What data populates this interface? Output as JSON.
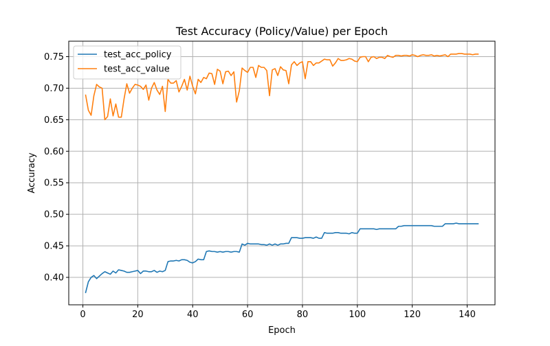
{
  "chart_data": {
    "type": "line",
    "title": "Test Accuracy (Policy/Value) per Epoch",
    "xlabel": "Epoch",
    "ylabel": "Accuracy",
    "xlim": [
      -5.15,
      150.15
    ],
    "ylim": [
      0.3565,
      0.7745
    ],
    "xticks": [
      0,
      20,
      40,
      60,
      80,
      100,
      120,
      140
    ],
    "yticks": [
      0.4,
      0.45,
      0.5,
      0.55,
      0.6,
      0.65,
      0.7,
      0.75
    ],
    "xtick_labels": [
      "0",
      "20",
      "40",
      "60",
      "80",
      "100",
      "120",
      "140"
    ],
    "ytick_labels": [
      "0.40",
      "0.45",
      "0.50",
      "0.55",
      "0.60",
      "0.65",
      "0.70",
      "0.75"
    ],
    "grid": true,
    "legend_position": "upper-left",
    "colors": {
      "test_acc_policy": "#1f77b4",
      "test_acc_value": "#ff7f0e",
      "grid": "#b0b0b0"
    },
    "series": [
      {
        "name": "test_acc_policy",
        "color": "#1f77b4",
        "x": [
          1,
          2,
          3,
          4,
          5,
          6,
          7,
          8,
          9,
          10,
          11,
          12,
          13,
          14,
          15,
          16,
          17,
          18,
          19,
          20,
          21,
          22,
          23,
          24,
          25,
          26,
          27,
          28,
          29,
          30,
          31,
          32,
          33,
          34,
          35,
          36,
          37,
          38,
          39,
          40,
          41,
          42,
          43,
          44,
          45,
          46,
          47,
          48,
          49,
          50,
          51,
          52,
          53,
          54,
          55,
          56,
          57,
          58,
          59,
          60,
          61,
          62,
          63,
          64,
          65,
          66,
          67,
          68,
          69,
          70,
          71,
          72,
          73,
          74,
          75,
          76,
          77,
          78,
          79,
          80,
          81,
          82,
          83,
          84,
          85,
          86,
          87,
          88,
          89,
          90,
          91,
          92,
          93,
          94,
          95,
          96,
          97,
          98,
          99,
          100,
          101,
          102,
          103,
          104,
          105,
          106,
          107,
          108,
          109,
          110,
          111,
          112,
          113,
          114,
          115,
          116,
          117,
          118,
          119,
          120,
          121,
          122,
          123,
          124,
          125,
          126,
          127,
          128,
          129,
          130,
          131,
          132,
          133,
          134,
          135,
          136,
          137,
          138,
          139,
          140,
          141,
          142,
          143,
          144
        ],
        "values": [
          0.376,
          0.393,
          0.4,
          0.403,
          0.398,
          0.402,
          0.406,
          0.409,
          0.407,
          0.405,
          0.41,
          0.407,
          0.412,
          0.411,
          0.41,
          0.408,
          0.408,
          0.409,
          0.41,
          0.411,
          0.406,
          0.41,
          0.41,
          0.409,
          0.409,
          0.411,
          0.408,
          0.41,
          0.409,
          0.411,
          0.425,
          0.426,
          0.426,
          0.427,
          0.426,
          0.428,
          0.428,
          0.427,
          0.424,
          0.423,
          0.425,
          0.429,
          0.428,
          0.428,
          0.441,
          0.442,
          0.441,
          0.441,
          0.44,
          0.441,
          0.44,
          0.441,
          0.441,
          0.44,
          0.441,
          0.441,
          0.44,
          0.453,
          0.451,
          0.454,
          0.453,
          0.453,
          0.453,
          0.453,
          0.452,
          0.452,
          0.451,
          0.453,
          0.451,
          0.453,
          0.451,
          0.453,
          0.453,
          0.454,
          0.454,
          0.463,
          0.463,
          0.463,
          0.462,
          0.462,
          0.463,
          0.463,
          0.463,
          0.462,
          0.464,
          0.462,
          0.462,
          0.471,
          0.47,
          0.47,
          0.47,
          0.471,
          0.471,
          0.47,
          0.47,
          0.47,
          0.469,
          0.471,
          0.47,
          0.47,
          0.477,
          0.477,
          0.477,
          0.477,
          0.477,
          0.477,
          0.476,
          0.477,
          0.477,
          0.477,
          0.477,
          0.477,
          0.477,
          0.477,
          0.481,
          0.481,
          0.482,
          0.482,
          0.482,
          0.482,
          0.482,
          0.482,
          0.482,
          0.482,
          0.482,
          0.482,
          0.482,
          0.481,
          0.481,
          0.481,
          0.481,
          0.485,
          0.485,
          0.485,
          0.485,
          0.486,
          0.485,
          0.485,
          0.485,
          0.485,
          0.485,
          0.485,
          0.485,
          0.485
        ]
      },
      {
        "name": "test_acc_value",
        "color": "#ff7f0e",
        "x": [
          1,
          2,
          3,
          4,
          5,
          6,
          7,
          8,
          9,
          10,
          11,
          12,
          13,
          14,
          15,
          16,
          17,
          18,
          19,
          20,
          21,
          22,
          23,
          24,
          25,
          26,
          27,
          28,
          29,
          30,
          31,
          32,
          33,
          34,
          35,
          36,
          37,
          38,
          39,
          40,
          41,
          42,
          43,
          44,
          45,
          46,
          47,
          48,
          49,
          50,
          51,
          52,
          53,
          54,
          55,
          56,
          57,
          58,
          59,
          60,
          61,
          62,
          63,
          64,
          65,
          66,
          67,
          68,
          69,
          70,
          71,
          72,
          73,
          74,
          75,
          76,
          77,
          78,
          79,
          80,
          81,
          82,
          83,
          84,
          85,
          86,
          87,
          88,
          89,
          90,
          91,
          92,
          93,
          94,
          95,
          96,
          97,
          98,
          99,
          100,
          101,
          102,
          103,
          104,
          105,
          106,
          107,
          108,
          109,
          110,
          111,
          112,
          113,
          114,
          115,
          116,
          117,
          118,
          119,
          120,
          121,
          122,
          123,
          124,
          125,
          126,
          127,
          128,
          129,
          130,
          131,
          132,
          133,
          134,
          135,
          136,
          137,
          138,
          139,
          140,
          141,
          142,
          143,
          144
        ],
        "values": [
          0.689,
          0.665,
          0.657,
          0.688,
          0.706,
          0.702,
          0.7,
          0.65,
          0.655,
          0.683,
          0.656,
          0.675,
          0.654,
          0.654,
          0.683,
          0.707,
          0.692,
          0.7,
          0.706,
          0.705,
          0.703,
          0.698,
          0.705,
          0.681,
          0.7,
          0.709,
          0.697,
          0.69,
          0.703,
          0.663,
          0.714,
          0.708,
          0.708,
          0.712,
          0.694,
          0.703,
          0.714,
          0.697,
          0.719,
          0.703,
          0.691,
          0.714,
          0.709,
          0.717,
          0.715,
          0.724,
          0.723,
          0.706,
          0.73,
          0.727,
          0.707,
          0.726,
          0.727,
          0.72,
          0.726,
          0.678,
          0.696,
          0.732,
          0.728,
          0.725,
          0.733,
          0.733,
          0.717,
          0.736,
          0.733,
          0.733,
          0.728,
          0.688,
          0.729,
          0.731,
          0.72,
          0.734,
          0.729,
          0.728,
          0.707,
          0.737,
          0.742,
          0.736,
          0.74,
          0.742,
          0.715,
          0.742,
          0.742,
          0.736,
          0.74,
          0.74,
          0.743,
          0.746,
          0.745,
          0.745,
          0.735,
          0.74,
          0.747,
          0.744,
          0.744,
          0.745,
          0.747,
          0.746,
          0.743,
          0.742,
          0.749,
          0.75,
          0.75,
          0.742,
          0.749,
          0.75,
          0.747,
          0.749,
          0.749,
          0.747,
          0.752,
          0.75,
          0.749,
          0.752,
          0.752,
          0.751,
          0.752,
          0.752,
          0.751,
          0.753,
          0.752,
          0.75,
          0.752,
          0.753,
          0.752,
          0.752,
          0.753,
          0.751,
          0.752,
          0.751,
          0.752,
          0.753,
          0.75,
          0.754,
          0.754,
          0.754,
          0.755,
          0.755,
          0.754,
          0.754,
          0.754,
          0.753,
          0.754,
          0.754
        ]
      }
    ]
  }
}
